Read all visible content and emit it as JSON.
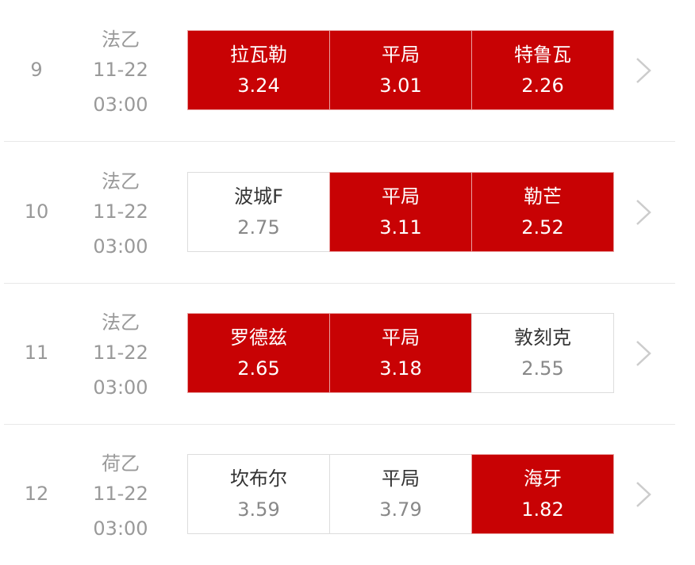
{
  "colors": {
    "selected": "#c80204",
    "text": "#333333",
    "muted": "#999999"
  },
  "icons": {
    "detail": "chevron-right-icon"
  },
  "matches": [
    {
      "no": "9",
      "league": "法乙",
      "date": "11-22",
      "time": "03:00",
      "options": [
        {
          "label": "拉瓦勒",
          "odds": "3.24",
          "selected": true
        },
        {
          "label": "平局",
          "odds": "3.01",
          "selected": true
        },
        {
          "label": "特鲁瓦",
          "odds": "2.26",
          "selected": true
        }
      ]
    },
    {
      "no": "10",
      "league": "法乙",
      "date": "11-22",
      "time": "03:00",
      "options": [
        {
          "label": "波城F",
          "odds": "2.75",
          "selected": false
        },
        {
          "label": "平局",
          "odds": "3.11",
          "selected": true
        },
        {
          "label": "勒芒",
          "odds": "2.52",
          "selected": true
        }
      ]
    },
    {
      "no": "11",
      "league": "法乙",
      "date": "11-22",
      "time": "03:00",
      "options": [
        {
          "label": "罗德兹",
          "odds": "2.65",
          "selected": true
        },
        {
          "label": "平局",
          "odds": "3.18",
          "selected": true
        },
        {
          "label": "敦刻克",
          "odds": "2.55",
          "selected": false
        }
      ]
    },
    {
      "no": "12",
      "league": "荷乙",
      "date": "11-22",
      "time": "03:00",
      "options": [
        {
          "label": "坎布尔",
          "odds": "3.59",
          "selected": false
        },
        {
          "label": "平局",
          "odds": "3.79",
          "selected": false
        },
        {
          "label": "海牙",
          "odds": "1.82",
          "selected": true
        }
      ]
    }
  ]
}
